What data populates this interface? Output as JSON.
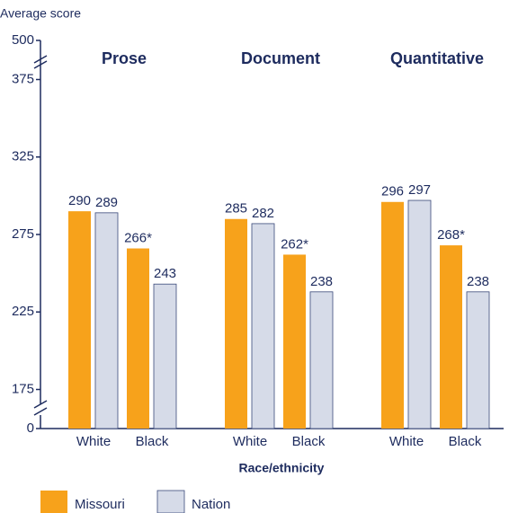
{
  "chart_data": {
    "type": "bar",
    "ylabel": "Average score",
    "xlabel": "Race/ethnicity",
    "groups": [
      "Prose",
      "Document",
      "Quantitative"
    ],
    "categories": [
      "White",
      "Black"
    ],
    "series": [
      {
        "name": "Missouri",
        "color": "#f7a21b",
        "values": [
          [
            290,
            266
          ],
          [
            285,
            262
          ],
          [
            296,
            268
          ]
        ],
        "value_labels": [
          [
            "290",
            "266*"
          ],
          [
            "285",
            "262*"
          ],
          [
            "296",
            "268*"
          ]
        ]
      },
      {
        "name": "Nation",
        "color": "#d6dbe8",
        "values": [
          [
            289,
            243
          ],
          [
            282,
            238
          ],
          [
            297,
            238
          ]
        ]
      }
    ],
    "ylim": [
      0,
      500
    ],
    "yticks": [
      0,
      175,
      225,
      275,
      325,
      375,
      500
    ],
    "y_breaks": [
      [
        0,
        175
      ],
      [
        375,
        500
      ]
    ]
  }
}
